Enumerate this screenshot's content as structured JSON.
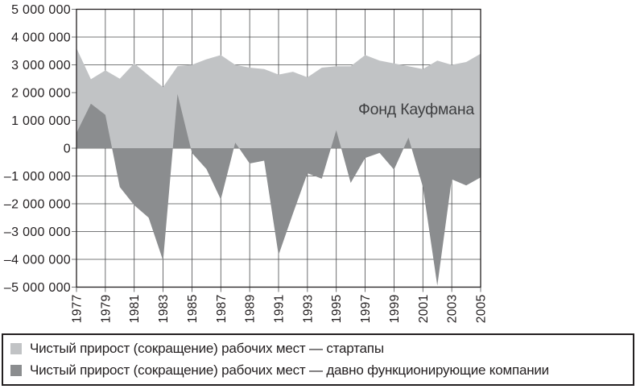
{
  "chart": {
    "annotation": "Фонд Кауфмана",
    "colors": {
      "startups_fill": "#c1c3c5",
      "established_fill": "#8b8d8f",
      "grid": "#4a4b4d",
      "frame": "#231f20",
      "text": "#231f20"
    }
  },
  "legend": {
    "items": [
      {
        "swatch": "#c1c3c5",
        "label": "Чистый прирост (сокращение) рабочих мест — стартапы"
      },
      {
        "swatch": "#8b8d8f",
        "label": "Чистый прирост (сокращение) рабочих мест — давно функционирующие компании"
      }
    ]
  },
  "chart_data": {
    "type": "area",
    "title": "",
    "xlabel": "",
    "ylabel": "",
    "annotation": "Фонд Кауфмана",
    "ylim": [
      -5000000,
      5000000
    ],
    "grid": true,
    "legend_position": "bottom",
    "x": [
      1977,
      1978,
      1979,
      1980,
      1981,
      1982,
      1983,
      1984,
      1985,
      1986,
      1987,
      1988,
      1989,
      1990,
      1991,
      1992,
      1993,
      1994,
      1995,
      1996,
      1997,
      1998,
      1999,
      2000,
      2001,
      2002,
      2003,
      2004,
      2005
    ],
    "x_ticks": [
      1977,
      1979,
      1981,
      1983,
      1985,
      1987,
      1989,
      1991,
      1993,
      1995,
      1997,
      1999,
      2001,
      2003,
      2005
    ],
    "x_tick_labels": [
      "1977",
      "1979",
      "1981",
      "1983",
      "1985",
      "1987",
      "1989",
      "1991",
      "1993",
      "1995",
      "1997",
      "1999",
      "2001",
      "2003",
      "2005"
    ],
    "y_ticks": [
      5000000,
      4000000,
      3000000,
      2000000,
      1000000,
      0,
      -1000000,
      -2000000,
      -3000000,
      -4000000,
      -5000000
    ],
    "y_tick_labels": [
      "5 000 000",
      "4 000 000",
      "3 000 000",
      "2 000 000",
      "1 000 000",
      "0",
      "–1 000 000",
      "–2 000 000",
      "–3 000 000",
      "–4 000 000",
      "–5 000 000"
    ],
    "series": [
      {
        "name": "Чистый прирост (сокращение) рабочих мест — стартапы",
        "color": "#c1c3c5",
        "values": [
          3600000,
          2480000,
          2800000,
          2500000,
          3050000,
          2620000,
          2200000,
          2950000,
          3000000,
          3200000,
          3350000,
          3000000,
          2900000,
          2850000,
          2650000,
          2750000,
          2550000,
          2900000,
          2950000,
          2950000,
          3350000,
          3150000,
          3050000,
          2950000,
          2850000,
          3150000,
          3000000,
          3100000,
          3400000
        ]
      },
      {
        "name": "Чистый прирост (сокращение) рабочих мест — давно функционирующие компании",
        "color": "#8b8d8f",
        "values": [
          550000,
          1600000,
          1200000,
          -1400000,
          -2050000,
          -2500000,
          -4050000,
          1950000,
          -170000,
          -750000,
          -1850000,
          200000,
          -550000,
          -450000,
          -3850000,
          -2350000,
          -900000,
          -1100000,
          650000,
          -1250000,
          -350000,
          -170000,
          -770000,
          380000,
          -1400000,
          -4950000,
          -1120000,
          -1340000,
          -1050000
        ]
      }
    ]
  }
}
